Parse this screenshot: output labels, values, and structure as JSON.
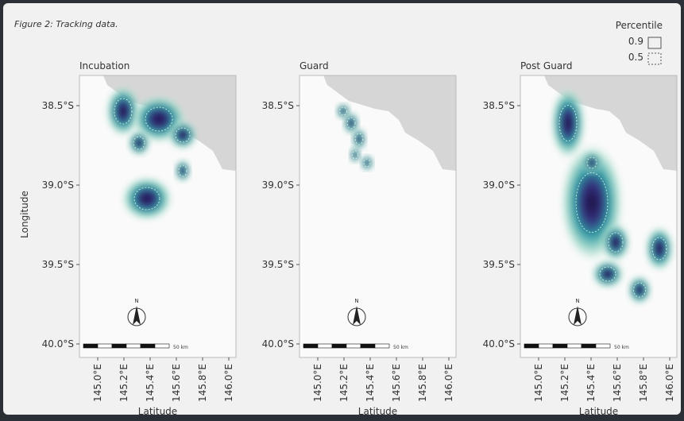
{
  "caption": "Figure 2: Tracking data.",
  "legend": {
    "title": "Percentile",
    "items": [
      "0.9",
      "0.5"
    ]
  },
  "panels": [
    {
      "title": "Incubation"
    },
    {
      "title": "Guard"
    },
    {
      "title": "Post Guard"
    }
  ],
  "axes": {
    "y_label": "Longitude",
    "x_label": "Latitude",
    "y_ticks": [
      "38.5°S",
      "39.0°S",
      "39.5°S",
      "40.0°S"
    ],
    "x_ticks": [
      "145.0°E",
      "145.2°E",
      "145.4°E",
      "145.6°E",
      "145.8°E",
      "146.0°E"
    ]
  },
  "scale_bar": "50 km",
  "north": "N"
}
